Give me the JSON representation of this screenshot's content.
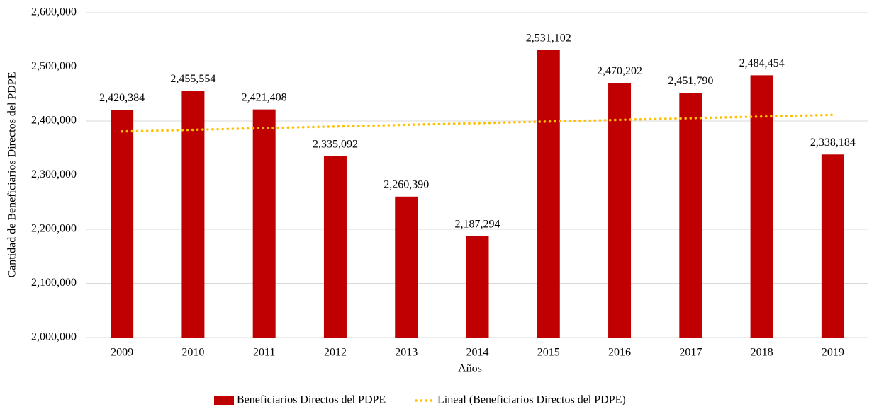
{
  "chart_data": {
    "type": "bar",
    "categories": [
      "2009",
      "2010",
      "2011",
      "2012",
      "2013",
      "2014",
      "2015",
      "2016",
      "2017",
      "2018",
      "2019"
    ],
    "series": [
      {
        "name": "Beneficiarios Directos del PDPE",
        "color": "#c00000",
        "type": "bar",
        "values": [
          2420384,
          2455554,
          2421408,
          2335092,
          2260390,
          2187294,
          2531102,
          2470202,
          2451790,
          2484454,
          2338184
        ],
        "value_labels": [
          "2,420,384",
          "2,455,554",
          "2,421,408",
          "2,335,092",
          "2,260,390",
          "2,187,294",
          "2,531,102",
          "2,470,202",
          "2,451,790",
          "2,484,454",
          "2,338,184"
        ]
      },
      {
        "name": "Lineal (Beneficiarios Directos del PDPE)",
        "color": "#ffc000",
        "type": "line",
        "values": [
          2380684,
          2383745,
          2386805,
          2389866,
          2392926,
          2395987,
          2399048,
          2402108,
          2405169,
          2408229,
          2411290
        ]
      }
    ],
    "xlabel": "Años",
    "ylabel": "Cantidad de Beneficiarios Directos del PDPE",
    "ylim": [
      2000000,
      2600000
    ],
    "yticks": [
      {
        "value": 2000000,
        "label": "2,000,000"
      },
      {
        "value": 2100000,
        "label": "2,100,000"
      },
      {
        "value": 2200000,
        "label": "2,200,000"
      },
      {
        "value": 2300000,
        "label": "2,300,000"
      },
      {
        "value": 2400000,
        "label": "2,400,000"
      },
      {
        "value": 2500000,
        "label": "2,500,000"
      },
      {
        "value": 2600000,
        "label": "2,600,000"
      }
    ],
    "grid": true,
    "legend": "bottom"
  }
}
